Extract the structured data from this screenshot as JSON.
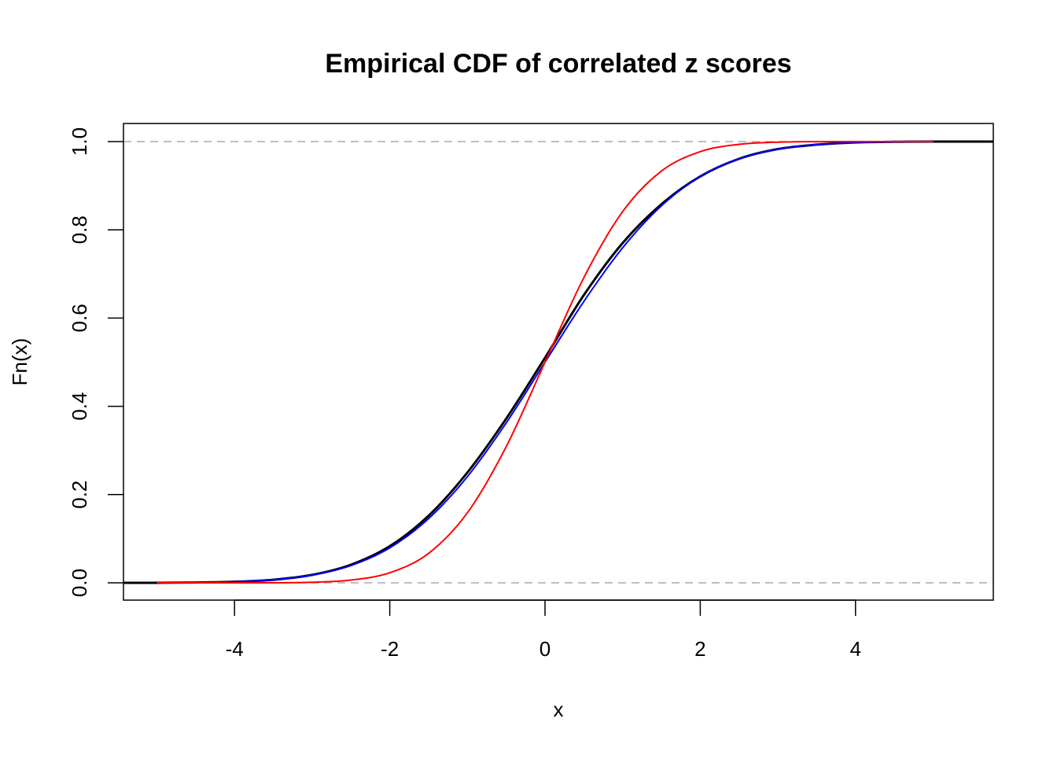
{
  "chart_data": {
    "type": "line",
    "title": "Empirical CDF of correlated z scores",
    "xlabel": "x",
    "ylabel": "Fn(x)",
    "xlim": [
      -5.43,
      5.77
    ],
    "ylim": [
      -0.04,
      1.04
    ],
    "x_ticks": [
      "-4",
      "-2",
      "0",
      "2",
      "4"
    ],
    "y_ticks": [
      "0.0",
      "0.2",
      "0.4",
      "0.6",
      "0.8",
      "1.0"
    ],
    "grid": false,
    "reference_lines": [
      0,
      1
    ],
    "reference_line_color": "#aaaaaa",
    "x": [
      -5,
      -4.5,
      -4,
      -3.5,
      -3,
      -2.5,
      -2,
      -1.5,
      -1,
      -0.5,
      0,
      0.5,
      1,
      1.5,
      2,
      2.5,
      3,
      3.5,
      4,
      4.5,
      5
    ],
    "series": [
      {
        "color": "#000000",
        "style": "ecdf-step",
        "values": [
          0,
          0.0007,
          0.0024,
          0.007,
          0.018,
          0.041,
          0.083,
          0.152,
          0.25,
          0.372,
          0.51,
          0.652,
          0.77,
          0.858,
          0.921,
          0.961,
          0.983,
          0.993,
          0.998,
          0.9995,
          1
        ]
      },
      {
        "color": "#0000ff",
        "style": "line",
        "values": [
          0.0002,
          0.0008,
          0.0024,
          0.0069,
          0.0174,
          0.0392,
          0.0793,
          0.1455,
          0.2407,
          0.3624,
          0.5,
          0.6376,
          0.7593,
          0.8545,
          0.9207,
          0.9608,
          0.9826,
          0.9931,
          0.9976,
          0.9992,
          0.9998
        ]
      },
      {
        "color": "#ff0000",
        "style": "line",
        "values": [
          0,
          0,
          3e-05,
          0.0002,
          0.0013,
          0.0062,
          0.0228,
          0.0668,
          0.1587,
          0.3085,
          0.5,
          0.6915,
          0.8413,
          0.9332,
          0.9772,
          0.9938,
          0.9987,
          0.9998,
          1,
          1,
          1
        ]
      }
    ]
  }
}
